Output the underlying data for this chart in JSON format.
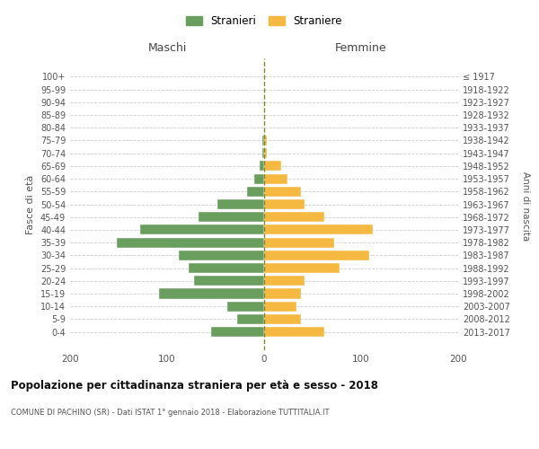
{
  "age_groups": [
    "0-4",
    "5-9",
    "10-14",
    "15-19",
    "20-24",
    "25-29",
    "30-34",
    "35-39",
    "40-44",
    "45-49",
    "50-54",
    "55-59",
    "60-64",
    "65-69",
    "70-74",
    "75-79",
    "80-84",
    "85-89",
    "90-94",
    "95-99",
    "100+"
  ],
  "birth_years": [
    "2013-2017",
    "2008-2012",
    "2003-2007",
    "1998-2002",
    "1993-1997",
    "1988-1992",
    "1983-1987",
    "1978-1982",
    "1973-1977",
    "1968-1972",
    "1963-1967",
    "1958-1962",
    "1953-1957",
    "1948-1952",
    "1943-1947",
    "1938-1942",
    "1933-1937",
    "1928-1932",
    "1923-1927",
    "1918-1922",
    "≤ 1917"
  ],
  "maschi": [
    55,
    28,
    38,
    108,
    72,
    78,
    88,
    152,
    128,
    68,
    48,
    18,
    10,
    5,
    2,
    2,
    0,
    0,
    0,
    0,
    0
  ],
  "femmine": [
    62,
    38,
    33,
    38,
    42,
    78,
    108,
    72,
    112,
    62,
    42,
    38,
    24,
    18,
    3,
    3,
    0,
    0,
    0,
    0,
    0
  ],
  "maschi_color": "#6a9e5f",
  "femmine_color": "#f5b942",
  "title": "Popolazione per cittadinanza straniera per età e sesso - 2018",
  "subtitle": "COMUNE DI PACHINO (SR) - Dati ISTAT 1° gennaio 2018 - Elaborazione TUTTITALIA.IT",
  "ylabel_left": "Fasce di età",
  "ylabel_right": "Anni di nascita",
  "xlabel_left": "Maschi",
  "xlabel_right": "Femmine",
  "legend_stranieri": "Stranieri",
  "legend_straniere": "Straniere",
  "xlim": 200,
  "background_color": "#ffffff",
  "grid_color": "#cccccc"
}
